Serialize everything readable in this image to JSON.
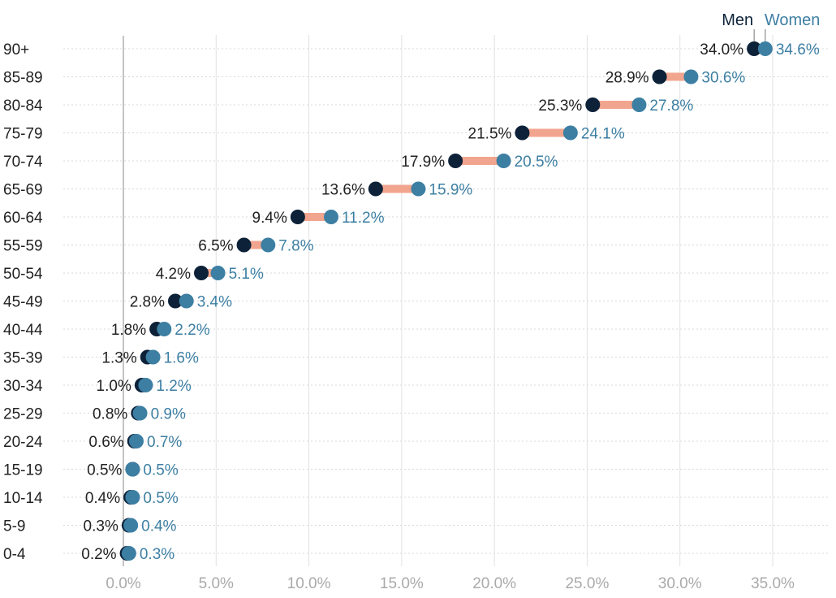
{
  "chart_data": {
    "type": "dumbbell",
    "title": "",
    "xlabel": "",
    "ylabel": "",
    "xlim": [
      0,
      35
    ],
    "xticks": [
      0,
      5,
      10,
      15,
      20,
      25,
      30,
      35
    ],
    "xtick_labels": [
      "0.0%",
      "5.0%",
      "10.0%",
      "15.0%",
      "20.0%",
      "25.0%",
      "30.0%",
      "35.0%"
    ],
    "grid": true,
    "legend_position": "top-right",
    "categories": [
      "90+",
      "85-89",
      "80-84",
      "75-79",
      "70-74",
      "65-69",
      "60-64",
      "55-59",
      "50-54",
      "45-49",
      "40-44",
      "35-39",
      "30-34",
      "25-29",
      "20-24",
      "15-19",
      "10-14",
      "5-9",
      "0-4"
    ],
    "series": [
      {
        "name": "Men",
        "color": "#0d2239",
        "values": [
          34.0,
          28.9,
          25.3,
          21.5,
          17.9,
          13.6,
          9.4,
          6.5,
          4.2,
          2.8,
          1.8,
          1.3,
          1.0,
          0.8,
          0.6,
          0.5,
          0.4,
          0.3,
          0.2
        ],
        "labels": [
          "34.0%",
          "28.9%",
          "25.3%",
          "21.5%",
          "17.9%",
          "13.6%",
          "9.4%",
          "6.5%",
          "4.2%",
          "2.8%",
          "1.8%",
          "1.3%",
          "1.0%",
          "0.8%",
          "0.6%",
          "0.5%",
          "0.4%",
          "0.3%",
          "0.2%"
        ]
      },
      {
        "name": "Women",
        "color": "#3d7fa3",
        "values": [
          34.6,
          30.6,
          27.8,
          24.1,
          20.5,
          15.9,
          11.2,
          7.8,
          5.1,
          3.4,
          2.2,
          1.6,
          1.2,
          0.9,
          0.7,
          0.5,
          0.5,
          0.4,
          0.3
        ],
        "labels": [
          "34.6%",
          "30.6%",
          "27.8%",
          "24.1%",
          "20.5%",
          "15.9%",
          "11.2%",
          "7.8%",
          "5.1%",
          "3.4%",
          "2.2%",
          "1.6%",
          "1.2%",
          "0.9%",
          "0.7%",
          "0.5%",
          "0.5%",
          "0.4%",
          "0.3%"
        ]
      }
    ],
    "connector_color": "#f2a58e",
    "label_color": "#222222",
    "tick_color": "#aaaaaa"
  }
}
